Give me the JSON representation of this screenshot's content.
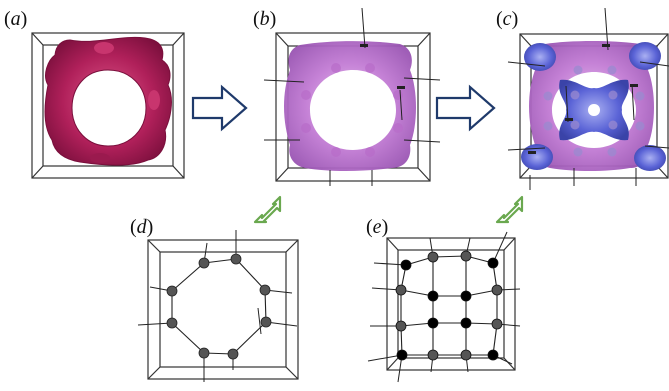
{
  "figure": {
    "panels": [
      {
        "id": "a",
        "letter": "a",
        "kind": "isosurface",
        "colors": [
          "#b0205a"
        ]
      },
      {
        "id": "b",
        "letter": "b",
        "kind": "isosurface",
        "colors": [
          "#c27bd4"
        ]
      },
      {
        "id": "c",
        "letter": "c",
        "kind": "isosurface",
        "colors": [
          "#c27bd4",
          "#5a63d6"
        ]
      },
      {
        "id": "d",
        "letter": "d",
        "kind": "ball-and-stick",
        "node_colors": [
          "#555555"
        ]
      },
      {
        "id": "e",
        "letter": "e",
        "kind": "ball-and-stick",
        "node_colors": [
          "#555555",
          "#000000"
        ]
      }
    ],
    "arrows": {
      "process_arrow_color": "#1f3a6b",
      "correspondence_arrow_color": "#6aa84f"
    }
  }
}
